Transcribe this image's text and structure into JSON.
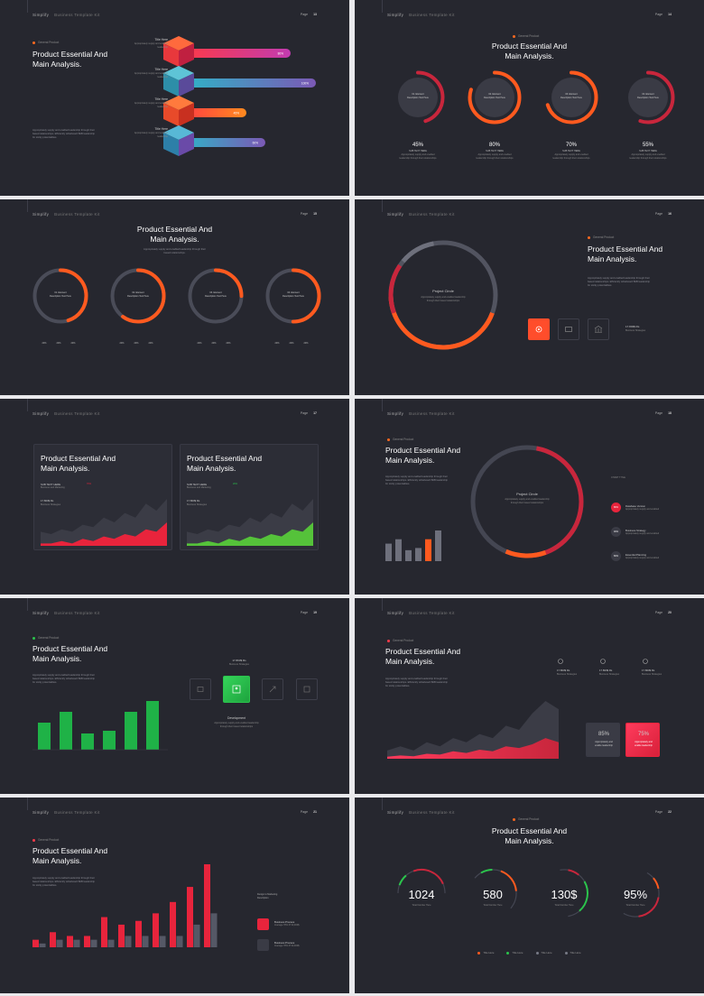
{
  "common": {
    "brand": "Simplify",
    "brand_sub": "Business Template Kit",
    "page_label": "Page",
    "tag": "General Product",
    "title": "Product Essential And\nMain Analysis.",
    "desc": "Appropriately supply and enabled leadership through their\nbased relationships. Efficiently whiteboard B2B leadership\nfor sticky potentialities.",
    "desc_short": "Appropriately supply and enabled leadership through their\nbased relationships."
  },
  "pages": [
    "13",
    "14",
    "15",
    "16",
    "17",
    "18",
    "19",
    "20",
    "21",
    "22"
  ],
  "colors": {
    "bg": "#26272f",
    "orange": "#ff5a1f",
    "red": "#e8243c",
    "pink": "#ff3b5c",
    "teal": "#2db6c8",
    "purple": "#7b59b5",
    "green": "#2bc44c",
    "gray": "#4a4c58"
  },
  "slide1": {
    "items": [
      {
        "title": "Title Here",
        "desc": "Appropriately supply and enabled\nleadership",
        "value": "80%",
        "fill": 0.8
      },
      {
        "title": "Title Here",
        "desc": "Appropriately supply and enabled\nleadership",
        "value": "100%",
        "fill": 1.0
      },
      {
        "title": "Title Here",
        "desc": "Appropriately supply and enabled\nleadership",
        "value": "45%",
        "fill": 0.45
      },
      {
        "title": "Title Here",
        "desc": "Appropriately supply and enabled\nleadership",
        "value": "60%",
        "fill": 0.6
      }
    ]
  },
  "slide2": {
    "rings": [
      {
        "center": "01. Element\nDescription Text Here",
        "value": "45%",
        "pct": 0.45,
        "sub": "SUB TEXT HERE",
        "desc": "Appropriately supply and enabled\nleadership through their relationships"
      },
      {
        "center": "02. Element\nDescription Text Here",
        "value": "80%",
        "pct": 0.8,
        "sub": "SUB TEXT HERE",
        "desc": "Appropriately supply and enabled\nleadership through their relationships"
      },
      {
        "center": "03. Element\nDescription Text Here",
        "value": "70%",
        "pct": 0.7,
        "sub": "SUB TEXT HERE",
        "desc": "Appropriately supply and enabled\nleadership through their relationships"
      },
      {
        "center": "04. Element\nDescription Text Here",
        "value": "55%",
        "pct": 0.55,
        "sub": "SUB TEXT HERE",
        "desc": "Appropriately supply and enabled\nleadership through their relationships"
      }
    ]
  },
  "slide3": {
    "rings": [
      {
        "center": "01. Element\nDescription Text Here",
        "pct": 0.45,
        "stats": [
          "20%",
          "20%",
          "20%"
        ]
      },
      {
        "center": "02. Element\nDescription Text Here",
        "pct": 0.6,
        "stats": [
          "20%",
          "20%",
          "20%"
        ]
      },
      {
        "center": "03. Element\nDescription Text Here",
        "pct": 0.25,
        "stats": [
          "20%",
          "20%",
          "20%"
        ]
      },
      {
        "center": "04. Element\nDescription Text Here",
        "pct": 0.5,
        "stats": [
          "20%",
          "20%",
          "20%"
        ]
      }
    ]
  },
  "slide4": {
    "circle_title": "Project Circle",
    "circle_desc": "Appropriately supply and enabled leadership\nthrough their based relationships",
    "stat_value": "17.803$ Rs",
    "stat_label": "Business Strategies"
  },
  "slide5": {
    "cards": [
      {
        "sub": "SUB TEXT HERE",
        "sub2": "Business and Marketing",
        "badge": "70%",
        "badge_color": "#e8243c",
        "value": "17.803$ Rs",
        "label": "Business Strategies",
        "series": [
          6,
          5,
          7,
          6,
          9,
          8,
          12,
          10,
          14,
          12,
          18,
          15,
          20
        ],
        "front": [
          1,
          1,
          2,
          1,
          3,
          2,
          4,
          3,
          5,
          4,
          7,
          6,
          10
        ],
        "color": "#e8243c"
      },
      {
        "sub": "SUB TEXT HERE",
        "sub2": "Business and Marketing",
        "badge": "20%",
        "badge_color": "#2bc44c",
        "value": "17.803$ Rs",
        "label": "Business Strategies",
        "series": [
          6,
          5,
          7,
          6,
          9,
          8,
          12,
          10,
          14,
          12,
          18,
          15,
          20
        ],
        "front": [
          1,
          1,
          2,
          1,
          3,
          2,
          4,
          3,
          5,
          4,
          7,
          6,
          10
        ],
        "color": "#55c23a"
      }
    ]
  },
  "slide6": {
    "circle_title": "Project Circle",
    "circle_desc": "Appropriately supply and enabled leadership\nthrough their based relationships",
    "bars": [
      4,
      5,
      2.5,
      3,
      5,
      7
    ],
    "chart_title": "CHART TITLE",
    "legend": [
      {
        "pct": "80%",
        "label": "Database Version",
        "desc": "Appropriately supply and enabled"
      },
      {
        "pct": "40%",
        "label": "Business Strategy",
        "desc": "Appropriately supply and enabled"
      },
      {
        "pct": "60%",
        "label": "Essential Planning",
        "desc": "Appropriately supply and enabled"
      }
    ]
  },
  "slide7": {
    "bars": [
      5,
      7,
      3,
      3.5,
      7,
      9
    ],
    "stat_value": "17.803$ Rs",
    "stat_label": "Business Strategies",
    "dev_title": "Development",
    "dev_desc": "Appropriately supply and enabled leadership\nthrough their based relationships"
  },
  "slide8": {
    "stats": [
      {
        "icon": "rocket-icon",
        "value": "17.803$ Rs",
        "label": "Business Strategies"
      },
      {
        "icon": "gear-icon",
        "value": "17.803$ Rs",
        "label": "Business Strategies"
      },
      {
        "icon": "gears-icon",
        "value": "17.803$ Rs",
        "label": "Business Strategies"
      }
    ],
    "box1_value": "85%",
    "box1_desc": "Appropriately and\nenable leadership",
    "box2_value": "75%",
    "box2_desc": "Appropriately and\nenable leadership",
    "series": [
      2,
      3,
      2,
      4,
      3,
      5,
      4,
      6,
      5,
      8,
      7,
      11,
      14,
      12
    ],
    "front": [
      0.5,
      0.8,
      0.6,
      1.2,
      1,
      1.8,
      1.4,
      2.2,
      1.8,
      3,
      2.6,
      3.5,
      5,
      4
    ]
  },
  "slide9": {
    "chart_data": {
      "type": "bar",
      "series": [
        {
          "values": [
            1,
            2,
            1.5,
            1.5,
            4,
            3,
            3.5,
            4.5,
            6,
            8,
            11
          ]
        },
        {
          "values": [
            0.5,
            1,
            1,
            1,
            1,
            1.5,
            1.5,
            1.5,
            1.5,
            3,
            4.5
          ]
        }
      ],
      "colors": [
        "#e8243c",
        "#555866"
      ]
    },
    "legend_title": "Design to Marketing\nDescription",
    "items": [
      {
        "icon": "bag-icon",
        "title": "Business Process",
        "desc": "Average 78% 3710,000$"
      },
      {
        "icon": "hand-icon",
        "title": "Business Process",
        "desc": "Average 78% 3710,000$"
      }
    ]
  },
  "slide10": {
    "gauges": [
      {
        "value": "1024",
        "label": "Total Number Here",
        "pct": 0.6
      },
      {
        "value": "580",
        "label": "Total Number Here",
        "pct": 0.45
      },
      {
        "value": "130$",
        "label": "Total Number Here",
        "pct": 0.55
      },
      {
        "value": "95%",
        "label": "Total Number Here",
        "pct": 0.5
      }
    ],
    "legend": [
      {
        "label": "Title Here",
        "color": "#ff5a1f"
      },
      {
        "label": "Title Here",
        "color": "#2bc44c"
      },
      {
        "label": "Title Here",
        "color": "#777a86"
      },
      {
        "label": "Title Here",
        "color": "#777a86"
      }
    ]
  }
}
